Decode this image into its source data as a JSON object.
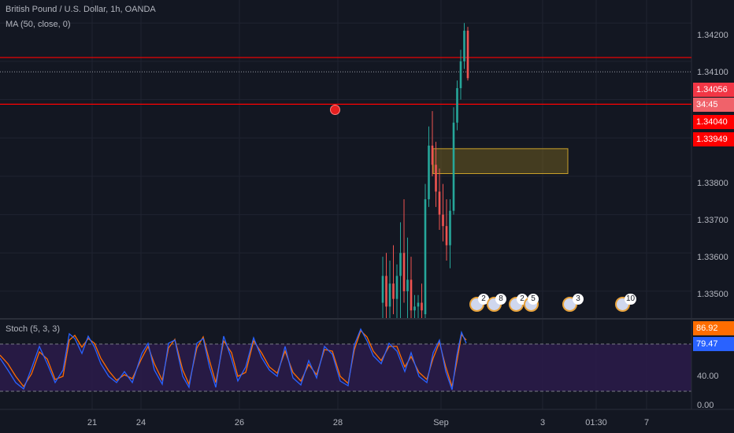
{
  "legend": {
    "symbol": "British Pound / U.S. Dollar, 1h, OANDA",
    "ma": "MA (50, close, 0)",
    "stoch": "Stoch (5, 3, 3)"
  },
  "price_axis": {
    "ticks": [
      "1.34200",
      "1.34100",
      "1.34056",
      "1.34040",
      "1.33949",
      "1.33800",
      "1.33700",
      "1.33600",
      "1.33500"
    ],
    "tags": {
      "last_price": "1.34056",
      "countdown": "34:45",
      "level_1": "1.34040",
      "level_2": "1.33949"
    }
  },
  "stoch_axis": {
    "ticks": [
      "40.00",
      "0.00"
    ],
    "k_value": "86.92",
    "d_value": "79.47"
  },
  "time_axis": {
    "labels": [
      "21",
      "24",
      "26",
      "28",
      "Sep",
      "3",
      "01:30",
      "7"
    ]
  },
  "events": [
    {
      "badge": "2",
      "flag": "us"
    },
    {
      "badge": "8",
      "flag": "us"
    },
    {
      "badge": "2",
      "flag": "gb"
    },
    {
      "badge": "5",
      "flag": "gb"
    },
    {
      "badge": "3",
      "flag": "gb"
    },
    {
      "badge": "10",
      "flag": "gb"
    }
  ],
  "colors": {
    "background": "#131722",
    "up_candle": "#26a69a",
    "down_candle": "#ef5350",
    "red_line": "#ff0000",
    "zone_fill": "#806a1f",
    "stoch_k": "#2962ff",
    "stoch_d": "#ff6d00",
    "stoch_band": "#2b1b4a"
  },
  "chart_data": {
    "type": "candlestick",
    "symbol": "GBPUSD",
    "timeframe": "1h",
    "ylim": [
      1.3343,
      1.3426
    ],
    "horizontal_lines": [
      1.3404,
      1.33949
    ],
    "dotted_line": 1.34056,
    "zone": {
      "top": 1.33872,
      "bottom": 1.33807
    },
    "candles": [
      {
        "o": 1.3347,
        "h": 1.3359,
        "l": 1.3343,
        "c": 1.3354
      },
      {
        "o": 1.3354,
        "h": 1.336,
        "l": 1.3343,
        "c": 1.3346
      },
      {
        "o": 1.3346,
        "h": 1.3358,
        "l": 1.3343,
        "c": 1.3352
      },
      {
        "o": 1.3352,
        "h": 1.3362,
        "l": 1.3344,
        "c": 1.3348
      },
      {
        "o": 1.3348,
        "h": 1.3357,
        "l": 1.3343,
        "c": 1.3354
      },
      {
        "o": 1.3354,
        "h": 1.3368,
        "l": 1.3343,
        "c": 1.336
      },
      {
        "o": 1.336,
        "h": 1.3374,
        "l": 1.3347,
        "c": 1.335
      },
      {
        "o": 1.335,
        "h": 1.3364,
        "l": 1.3343,
        "c": 1.3353
      },
      {
        "o": 1.3353,
        "h": 1.3359,
        "l": 1.3343,
        "c": 1.3345
      },
      {
        "o": 1.3345,
        "h": 1.3349,
        "l": 1.3343,
        "c": 1.3346
      },
      {
        "o": 1.3346,
        "h": 1.3349,
        "l": 1.3343,
        "c": 1.3347
      },
      {
        "o": 1.3347,
        "h": 1.3352,
        "l": 1.3343,
        "c": 1.3345
      },
      {
        "o": 1.3344,
        "h": 1.3378,
        "l": 1.3343,
        "c": 1.3374
      },
      {
        "o": 1.3374,
        "h": 1.3393,
        "l": 1.3372,
        "c": 1.3388
      },
      {
        "o": 1.3388,
        "h": 1.3397,
        "l": 1.338,
        "c": 1.3383
      },
      {
        "o": 1.3383,
        "h": 1.3389,
        "l": 1.3372,
        "c": 1.3376
      },
      {
        "o": 1.3376,
        "h": 1.3382,
        "l": 1.3366,
        "c": 1.337
      },
      {
        "o": 1.337,
        "h": 1.3378,
        "l": 1.3363,
        "c": 1.3367
      },
      {
        "o": 1.3367,
        "h": 1.3374,
        "l": 1.3358,
        "c": 1.3362
      },
      {
        "o": 1.3362,
        "h": 1.3374,
        "l": 1.3356,
        "c": 1.3371
      },
      {
        "o": 1.3371,
        "h": 1.3398,
        "l": 1.337,
        "c": 1.3394
      },
      {
        "o": 1.3394,
        "h": 1.3405,
        "l": 1.3392,
        "c": 1.3403
      },
      {
        "o": 1.3403,
        "h": 1.3413,
        "l": 1.34,
        "c": 1.341
      },
      {
        "o": 1.341,
        "h": 1.342,
        "l": 1.3408,
        "c": 1.3418
      },
      {
        "o": 1.3418,
        "h": 1.3419,
        "l": 1.3405,
        "c": 1.34056
      }
    ],
    "stochastic": {
      "params": "5, 3, 3",
      "k_last": 86.92,
      "d_last": 79.47,
      "bands": [
        80,
        20
      ]
    }
  }
}
